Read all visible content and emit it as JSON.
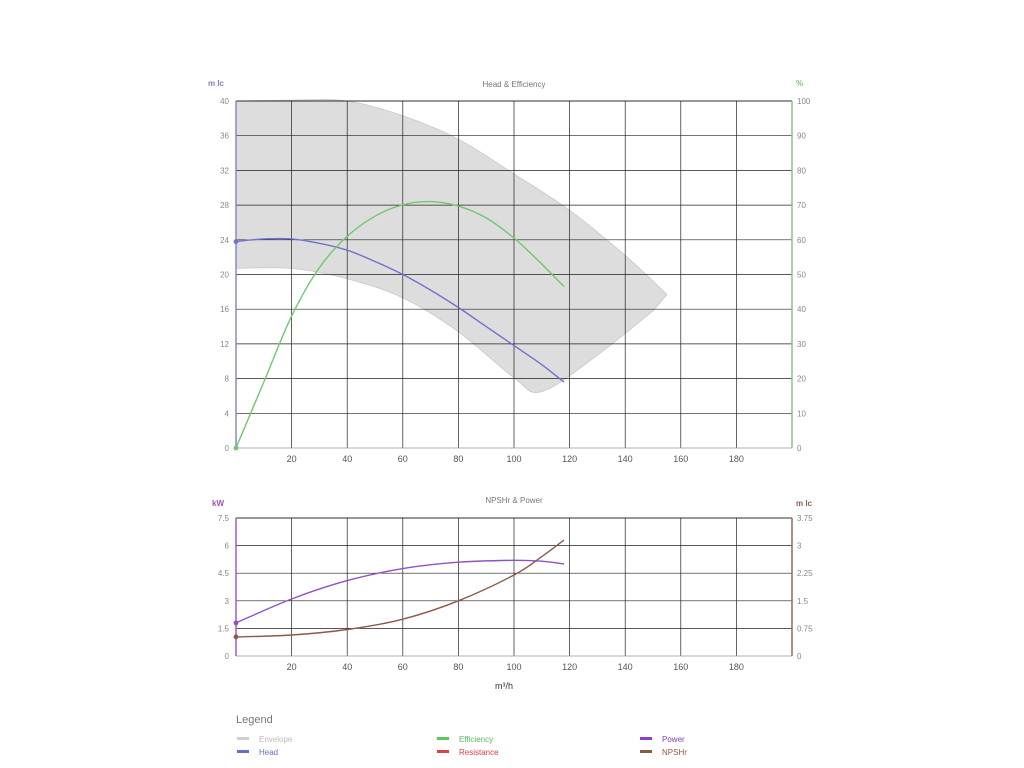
{
  "chart_data": [
    {
      "type": "line",
      "title": "Head & Efficiency",
      "x_range": [
        0,
        200
      ],
      "x_ticks": [
        20,
        40,
        60,
        80,
        100,
        120,
        140,
        160,
        180
      ],
      "y_left": {
        "label": "m lc",
        "range": [
          0,
          40
        ],
        "ticks": [
          0,
          4,
          8,
          12,
          16,
          20,
          24,
          28,
          32,
          36,
          40
        ],
        "color": "#8080c8"
      },
      "y_right": {
        "label": "%",
        "range": [
          0,
          100
        ],
        "ticks": [
          0,
          10,
          20,
          30,
          40,
          50,
          60,
          70,
          80,
          90,
          100
        ],
        "color": "#7cc47c"
      },
      "grid": true,
      "envelope": {
        "name": "Envelope",
        "color": "#dddddd",
        "upper": [
          [
            0,
            40
          ],
          [
            20,
            40.1
          ],
          [
            40,
            40
          ],
          [
            60,
            38.3
          ],
          [
            80,
            35.6
          ],
          [
            100,
            31.6
          ],
          [
            120,
            27.4
          ],
          [
            140,
            22.2
          ],
          [
            155,
            17.7
          ]
        ],
        "lower": [
          [
            150,
            15.8
          ],
          [
            130,
            10.7
          ],
          [
            110,
            6.5
          ],
          [
            100,
            8.1
          ],
          [
            80,
            13.4
          ],
          [
            60,
            17.3
          ],
          [
            40,
            19.5
          ],
          [
            20,
            20.7
          ],
          [
            0,
            20.7
          ]
        ]
      },
      "series": [
        {
          "name": "Head",
          "axis": "left",
          "color": "#7070d0",
          "points": [
            [
              0,
              23.8
            ],
            [
              10,
              24.1
            ],
            [
              20,
              24.1
            ],
            [
              30,
              23.6
            ],
            [
              40,
              22.8
            ],
            [
              50,
              21.5
            ],
            [
              60,
              20
            ],
            [
              70,
              18.2
            ],
            [
              80,
              16.2
            ],
            [
              90,
              14
            ],
            [
              100,
              11.8
            ],
            [
              110,
              9.6
            ],
            [
              118,
              7.6
            ]
          ]
        },
        {
          "name": "Efficiency",
          "axis": "right",
          "color": "#70c870",
          "points": [
            [
              0,
              0
            ],
            [
              10,
              19
            ],
            [
              20,
              38
            ],
            [
              30,
              52
            ],
            [
              40,
              61
            ],
            [
              50,
              66.8
            ],
            [
              60,
              70.1
            ],
            [
              70,
              71
            ],
            [
              80,
              69.7
            ],
            [
              90,
              66.3
            ],
            [
              100,
              60.5
            ],
            [
              110,
              53
            ],
            [
              118,
              46.5
            ]
          ]
        }
      ]
    },
    {
      "type": "line",
      "title": "NPSHr & Power",
      "xlabel": "m³/h",
      "x_range": [
        0,
        200
      ],
      "x_ticks": [
        20,
        40,
        60,
        80,
        100,
        120,
        140,
        160,
        180
      ],
      "y_left": {
        "label": "kW",
        "range": [
          0,
          7.5
        ],
        "ticks": [
          "0",
          "1.5",
          "3",
          "4.5",
          "6",
          "7.5"
        ],
        "color": "#a050c0"
      },
      "y_right": {
        "label": "m lc",
        "range": [
          0,
          3.75
        ],
        "ticks": [
          "0",
          "0.75",
          "1.5",
          "2.25",
          "3",
          "3.75"
        ],
        "color": "#906050"
      },
      "grid": true,
      "series": [
        {
          "name": "Power",
          "axis": "left",
          "color": "#9050c8",
          "points": [
            [
              0,
              1.8
            ],
            [
              20,
              3.1
            ],
            [
              40,
              4.1
            ],
            [
              60,
              4.75
            ],
            [
              80,
              5.1
            ],
            [
              100,
              5.2
            ],
            [
              110,
              5.15
            ],
            [
              118,
              5.0
            ]
          ]
        },
        {
          "name": "NPSHr",
          "axis": "right",
          "color": "#8a5a48",
          "points": [
            [
              0,
              0.52
            ],
            [
              20,
              0.57
            ],
            [
              40,
              0.72
            ],
            [
              60,
              1.0
            ],
            [
              80,
              1.5
            ],
            [
              100,
              2.2
            ],
            [
              110,
              2.7
            ],
            [
              118,
              3.15
            ]
          ]
        }
      ]
    }
  ],
  "legend": {
    "title": "Legend",
    "items": [
      {
        "label": "Envelope",
        "color": "#cfcfcf",
        "text_color": "#bbbbbb"
      },
      {
        "label": "Efficiency",
        "color": "#5cc85c",
        "text_color": "#5cb85c"
      },
      {
        "label": "Power",
        "color": "#9040c8",
        "text_color": "#8040c0"
      },
      {
        "label": "Head",
        "color": "#6070d0",
        "text_color": "#6070c8"
      },
      {
        "label": "Resistance",
        "color": "#e04040",
        "text_color": "#e04040"
      },
      {
        "label": "NPSHr",
        "color": "#8a5a48",
        "text_color": "#8a5a48"
      }
    ]
  }
}
